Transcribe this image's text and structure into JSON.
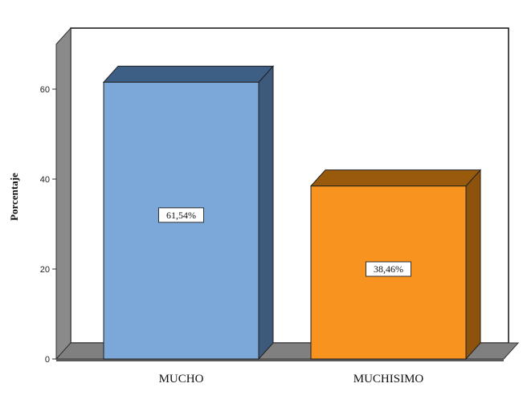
{
  "chart_data": {
    "type": "bar",
    "categories": [
      "MUCHO",
      "MUCHISIMO"
    ],
    "values": [
      61.54,
      38.46
    ],
    "data_labels": [
      "61,54%",
      "38,46%"
    ],
    "ylabel": "Porcentaje",
    "xlabel": "",
    "ylim": [
      0,
      70
    ],
    "yticks": [
      0,
      20,
      40,
      60
    ],
    "ytick_labels": [
      "0",
      "20",
      "40",
      "60"
    ],
    "grid": false,
    "style": "3d",
    "colors": {
      "bars": [
        "#7ba7d9",
        "#f7931e"
      ],
      "bar_tops": [
        "#3e5f85",
        "#9a5a0c"
      ],
      "bar_sides": [
        "#3d5a7c",
        "#8d520b"
      ],
      "wall_side": "#8a8a8a",
      "floor": "#808080",
      "plot_bg": "#ffffff"
    }
  }
}
